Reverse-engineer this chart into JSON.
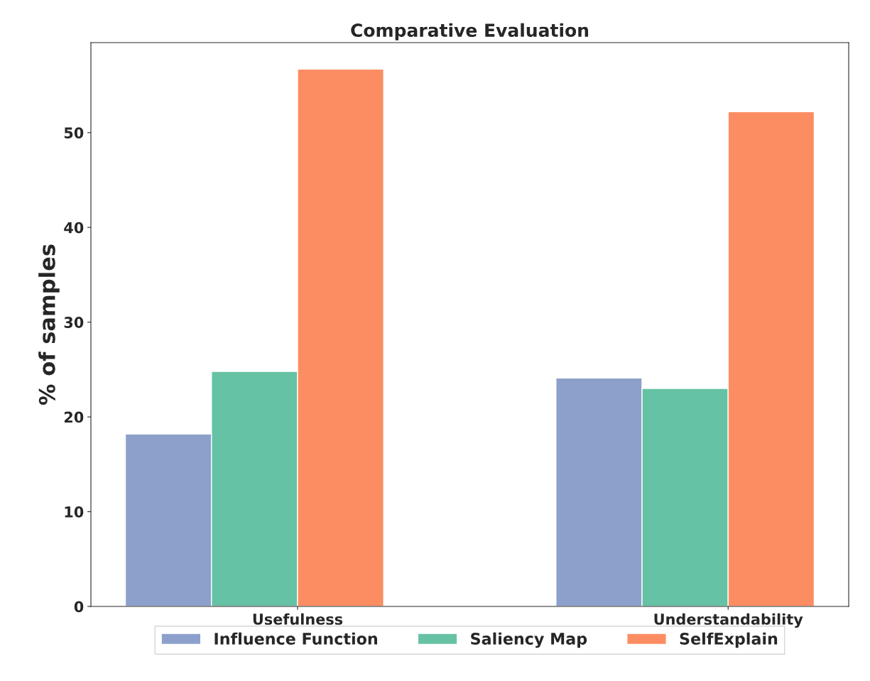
{
  "chart_data": {
    "type": "bar",
    "title": "Comparative Evaluation",
    "ylabel": "% of samples",
    "categories": [
      "Usefulness",
      "Understandability"
    ],
    "series": [
      {
        "name": "Influence Function",
        "color": "#8da0cb",
        "values": [
          18.2,
          24.1
        ]
      },
      {
        "name": "Saliency Map",
        "color": "#66c2a5",
        "values": [
          24.8,
          23.0
        ]
      },
      {
        "name": "SelfExplain",
        "color": "#fc8d62",
        "values": [
          56.7,
          52.2
        ]
      }
    ],
    "ylim": [
      0,
      59.5
    ],
    "yticks": [
      0,
      10,
      20,
      30,
      40,
      50
    ],
    "grid": false,
    "legend": "bottom"
  }
}
